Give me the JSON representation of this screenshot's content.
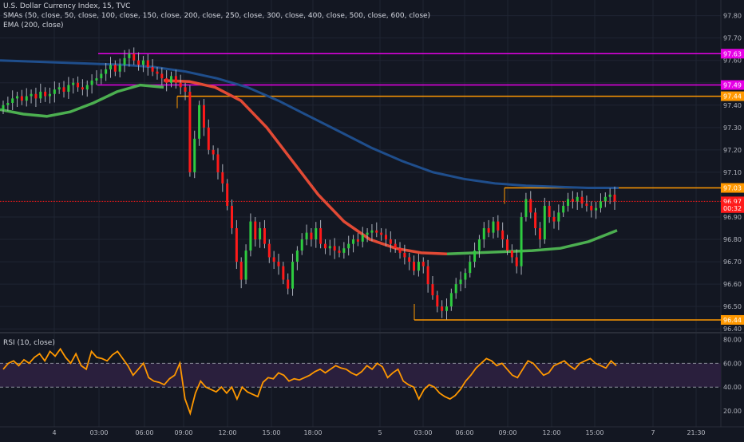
{
  "chart_title": "U.S. Dollar Currency Index, 15, TVC",
  "sma_label": "SMAs (50, close, 50, close, 100, close, 150, close, 200, close, 250, close, 300, close, 400, close, 500, close, 600, close)",
  "ema_label": "EMA (200, close)",
  "rsi_label": "RSI (10, close)",
  "colors": {
    "background": "#131722",
    "grid": "#1f2433",
    "up": "#26a69a",
    "up_bright": "#2ecc40",
    "down": "#ff1a1a",
    "magenta": "#e600e6",
    "orange": "#ff9800",
    "sma_blue": "#1f4e8c",
    "ema": "#e24a35",
    "ema_green": "#4caf50",
    "rsi_line": "#ff9800",
    "rsi_band": "#2a1f3d"
  },
  "price_axis": {
    "ticks": [
      "97.80",
      "97.70",
      "97.60",
      "97.50",
      "97.40",
      "97.30",
      "97.20",
      "97.10",
      "96.90",
      "96.80",
      "96.70",
      "96.60",
      "96.50",
      "96.40"
    ],
    "ylim": [
      96.39,
      97.87
    ]
  },
  "rsi_axis": {
    "ticks": [
      "80.00",
      "60.00",
      "40.00",
      "20.00"
    ],
    "ylim": [
      10,
      85
    ]
  },
  "time_axis": [
    "4",
    "03:00",
    "06:00",
    "09:00",
    "12:00",
    "15:00",
    "18:00",
    "5",
    "03:00",
    "06:00",
    "09:00",
    "12:00",
    "15:00",
    "7",
    "21:30"
  ],
  "chart_data": {
    "type": "candlestick",
    "title": "U.S. Dollar Currency Index, 15, TVC",
    "price_lines": [
      {
        "name": "97.63",
        "value": 97.63,
        "color": "#e600e6"
      },
      {
        "name": "97.49",
        "value": 97.49,
        "color": "#e600e6"
      },
      {
        "name": "97.44",
        "value": 97.44,
        "color": "#ff9800"
      },
      {
        "name": "97.03",
        "value": 97.03,
        "color": "#ff9800"
      },
      {
        "name": "96.44",
        "value": 96.44,
        "color": "#ff9800"
      }
    ],
    "price_labels": [
      {
        "text": "97.63",
        "value": 97.63,
        "color": "#e600e6"
      },
      {
        "text": "97.49",
        "value": 97.49,
        "color": "#e600e6"
      },
      {
        "text": "97.44",
        "value": 97.44,
        "color": "#ff9800"
      },
      {
        "text": "97.03",
        "value": 97.03,
        "color": "#ff9800"
      },
      {
        "text": "96.97",
        "value": 96.97,
        "color": "#ff1a1a"
      },
      {
        "text": "00:32",
        "value": 96.94,
        "color": "#ff1a1a"
      },
      {
        "text": "96.44",
        "value": 96.44,
        "color": "#ff9800"
      }
    ],
    "current_price": 96.97,
    "candles_close": [
      97.4,
      97.41,
      97.43,
      97.44,
      97.42,
      97.44,
      97.45,
      97.43,
      97.46,
      97.44,
      97.45,
      97.47,
      97.48,
      97.46,
      97.49,
      97.5,
      97.48,
      97.47,
      97.49,
      97.51,
      97.52,
      97.54,
      97.56,
      97.58,
      97.55,
      97.58,
      97.61,
      97.63,
      97.6,
      97.58,
      97.6,
      97.57,
      97.55,
      97.54,
      97.52,
      97.5,
      97.53,
      97.5,
      97.48,
      97.46,
      97.1,
      97.25,
      97.4,
      97.3,
      97.2,
      97.18,
      97.1,
      97.05,
      96.95,
      96.85,
      96.7,
      96.62,
      96.75,
      96.88,
      96.8,
      96.85,
      96.78,
      96.72,
      96.7,
      96.68,
      96.62,
      96.58,
      96.7,
      96.75,
      96.8,
      96.83,
      96.8,
      96.85,
      96.78,
      96.76,
      96.77,
      96.75,
      96.74,
      96.76,
      96.78,
      96.8,
      96.79,
      96.82,
      96.83,
      96.84,
      96.83,
      96.82,
      96.8,
      96.78,
      96.76,
      96.74,
      96.72,
      96.7,
      96.66,
      96.7,
      96.68,
      96.6,
      96.55,
      96.5,
      96.48,
      96.5,
      96.56,
      96.6,
      96.62,
      96.65,
      96.7,
      96.75,
      96.8,
      96.85,
      96.83,
      96.88,
      96.84,
      96.8,
      96.75,
      96.72,
      96.68,
      96.9,
      96.98,
      96.92,
      96.85,
      96.8,
      96.95,
      96.9,
      96.88,
      96.92,
      96.95,
      96.98,
      96.97,
      96.99,
      96.96,
      96.95,
      96.93,
      96.94,
      96.97,
      96.99,
      97.0,
      96.97
    ],
    "sma_line": [
      97.6,
      97.595,
      97.59,
      97.585,
      97.58,
      97.57,
      97.55,
      97.52,
      97.48,
      97.42,
      97.35,
      97.28,
      97.21,
      97.15,
      97.1,
      97.07,
      97.05,
      97.04,
      97.035,
      97.03,
      97.03
    ],
    "ema_red": [
      97.51,
      97.505,
      97.48,
      97.42,
      97.3,
      97.15,
      97.0,
      96.88,
      96.8,
      96.76,
      96.74,
      96.735
    ],
    "ema_green": [
      97.38,
      97.36,
      97.35,
      97.37,
      97.41,
      97.46,
      97.49,
      97.48
    ],
    "ema_green_2": [
      96.74,
      96.745,
      96.75,
      96.76,
      96.79,
      96.84
    ],
    "rsi_values": [
      55,
      60,
      62,
      58,
      63,
      60,
      65,
      68,
      62,
      70,
      66,
      72,
      65,
      60,
      68,
      58,
      55,
      70,
      65,
      64,
      62,
      67,
      70,
      64,
      58,
      50,
      55,
      60,
      48,
      45,
      44,
      42,
      47,
      50,
      60,
      30,
      18,
      35,
      45,
      40,
      38,
      36,
      40,
      35,
      40,
      30,
      40,
      36,
      34,
      32,
      44,
      48,
      47,
      52,
      50,
      45,
      47,
      46,
      48,
      50,
      53,
      55,
      52,
      55,
      58,
      56,
      55,
      52,
      50,
      53,
      58,
      55,
      60,
      57,
      48,
      52,
      55,
      45,
      42,
      40,
      30,
      38,
      42,
      40,
      35,
      32,
      30,
      33,
      38,
      45,
      50,
      56,
      60,
      64,
      62,
      58,
      60,
      55,
      50,
      48,
      55,
      62,
      60,
      55,
      50,
      52,
      58,
      60,
      62,
      58,
      55,
      60,
      62,
      64,
      60,
      58,
      56,
      62,
      58
    ],
    "rsi_bands": [
      60,
      40
    ]
  }
}
